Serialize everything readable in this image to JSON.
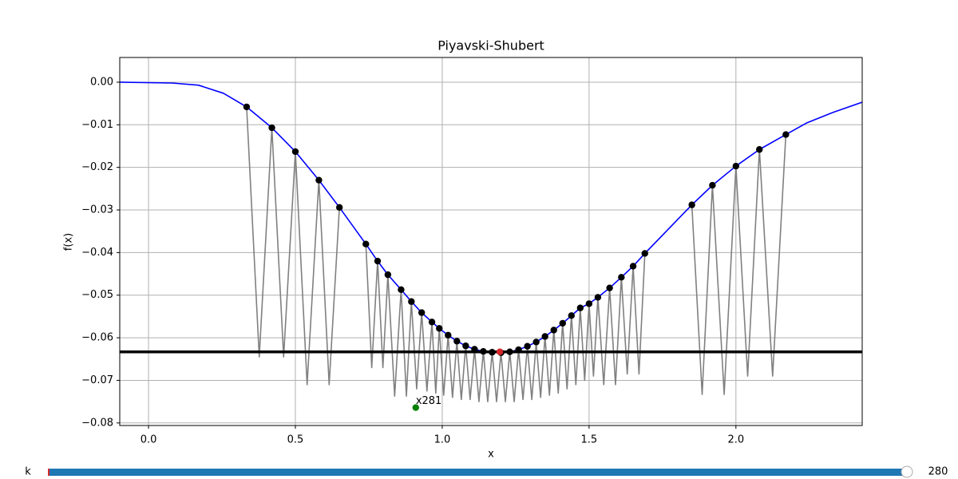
{
  "chart_data": {
    "type": "line",
    "title": "Piyavski-Shubert",
    "x_label": "x",
    "y_label": "f(x)",
    "xlim": [
      -0.098,
      2.43
    ],
    "ylim": [
      -0.0806,
      0.0058
    ],
    "xticks": [
      {
        "value": 0,
        "label": "0.0"
      },
      {
        "value": 0.5,
        "label": "0.5"
      },
      {
        "value": 1,
        "label": "1.0"
      },
      {
        "value": 1.5,
        "label": "1.5"
      },
      {
        "value": 2,
        "label": "2.0"
      }
    ],
    "yticks": [
      {
        "value": 0,
        "label": "0.00"
      },
      {
        "value": -0.01,
        "label": "−0.01"
      },
      {
        "value": -0.02,
        "label": "−0.02"
      },
      {
        "value": -0.03,
        "label": "−0.03"
      },
      {
        "value": -0.04,
        "label": "−0.04"
      },
      {
        "value": -0.05,
        "label": "−0.05"
      },
      {
        "value": -0.06,
        "label": "−0.06"
      },
      {
        "value": -0.07,
        "label": "−0.07"
      },
      {
        "value": -0.08,
        "label": "−0.08"
      }
    ],
    "grid": true,
    "lower_bound": {
      "color": "#808080",
      "x": [
        0.334,
        0.377,
        0.42,
        0.46,
        0.5,
        0.54,
        0.58,
        0.615,
        0.65,
        null,
        0.74,
        0.76,
        0.78,
        0.798,
        0.815,
        0.838,
        0.86,
        0.878,
        0.895,
        0.913,
        0.93,
        0.948,
        0.965,
        0.978,
        0.99,
        1.005,
        1.02,
        1.035,
        1.05,
        1.065,
        1.08,
        1.095,
        1.11,
        1.125,
        1.14,
        1.155,
        1.17,
        1.185,
        1.2,
        1.215,
        1.23,
        1.245,
        1.26,
        1.275,
        1.29,
        1.305,
        1.32,
        1.335,
        1.35,
        1.365,
        1.38,
        1.395,
        1.41,
        1.425,
        1.44,
        1.455,
        1.47,
        1.485,
        1.5,
        1.515,
        1.53,
        1.55,
        1.57,
        1.59,
        1.61,
        1.63,
        1.65,
        1.67,
        1.69,
        null,
        1.85,
        1.885,
        1.92,
        1.96,
        2.0,
        2.04,
        2.08,
        2.125,
        2.17
      ],
      "y": [
        -0.0058,
        -0.0645,
        -0.0107,
        -0.0645,
        -0.0163,
        -0.071,
        -0.023,
        -0.071,
        -0.0294,
        null,
        -0.038,
        -0.067,
        -0.042,
        -0.067,
        -0.0452,
        -0.0737,
        -0.0487,
        -0.0737,
        -0.0515,
        -0.072,
        -0.0541,
        -0.0725,
        -0.0563,
        -0.073,
        -0.0578,
        -0.0735,
        -0.0594,
        -0.074,
        -0.0608,
        -0.0745,
        -0.0619,
        -0.0745,
        -0.0627,
        -0.075,
        -0.0632,
        -0.075,
        -0.0634,
        -0.075,
        -0.0635,
        -0.075,
        -0.0633,
        -0.075,
        -0.0628,
        -0.0745,
        -0.062,
        -0.0745,
        -0.061,
        -0.074,
        -0.0597,
        -0.0735,
        -0.0582,
        -0.073,
        -0.0566,
        -0.072,
        -0.0548,
        -0.071,
        -0.053,
        -0.07,
        -0.052,
        -0.069,
        -0.0505,
        -0.071,
        -0.0483,
        -0.071,
        -0.0458,
        -0.0685,
        -0.0432,
        -0.0685,
        -0.0402,
        null,
        -0.0288,
        -0.0733,
        -0.0242,
        -0.0733,
        -0.0197,
        -0.069,
        -0.0158,
        -0.069,
        -0.0123
      ]
    },
    "curve": {
      "color": "#0000ff",
      "x": [
        -0.098,
        0.08,
        0.17,
        0.255,
        0.334,
        0.42,
        0.5,
        0.58,
        0.65,
        0.74,
        0.78,
        0.815,
        0.86,
        0.895,
        0.93,
        0.965,
        0.99,
        1.02,
        1.05,
        1.08,
        1.11,
        1.14,
        1.17,
        1.2,
        1.23,
        1.26,
        1.29,
        1.32,
        1.35,
        1.38,
        1.41,
        1.44,
        1.47,
        1.5,
        1.53,
        1.57,
        1.61,
        1.65,
        1.69,
        1.85,
        1.92,
        2.0,
        2.08,
        2.17,
        2.24,
        2.33,
        2.43
      ],
      "y": [
        0.0,
        -0.0002,
        -0.0007,
        -0.0026,
        -0.0058,
        -0.0107,
        -0.0163,
        -0.023,
        -0.0294,
        -0.038,
        -0.042,
        -0.0452,
        -0.0487,
        -0.0515,
        -0.0541,
        -0.0563,
        -0.0578,
        -0.0594,
        -0.0608,
        -0.0619,
        -0.0627,
        -0.0632,
        -0.0634,
        -0.0635,
        -0.0633,
        -0.0628,
        -0.062,
        -0.061,
        -0.0597,
        -0.0582,
        -0.0566,
        -0.0548,
        -0.053,
        -0.052,
        -0.0505,
        -0.0483,
        -0.0458,
        -0.0432,
        -0.0402,
        -0.0288,
        -0.0242,
        -0.0197,
        -0.0158,
        -0.0123,
        -0.0096,
        -0.0071,
        -0.0047
      ]
    },
    "samples": {
      "color": "#000000",
      "x": [
        0.334,
        0.42,
        0.5,
        0.58,
        0.65,
        0.74,
        0.78,
        0.815,
        0.86,
        0.895,
        0.93,
        0.965,
        0.99,
        1.02,
        1.05,
        1.08,
        1.11,
        1.14,
        1.17,
        1.2,
        1.23,
        1.26,
        1.29,
        1.32,
        1.35,
        1.38,
        1.41,
        1.44,
        1.47,
        1.5,
        1.53,
        1.57,
        1.61,
        1.65,
        1.69,
        1.85,
        1.92,
        2.0,
        2.08,
        2.17
      ],
      "y": [
        -0.0058,
        -0.0107,
        -0.0163,
        -0.023,
        -0.0294,
        -0.038,
        -0.042,
        -0.0452,
        -0.0487,
        -0.0515,
        -0.0541,
        -0.0563,
        -0.0578,
        -0.0594,
        -0.0608,
        -0.0619,
        -0.0627,
        -0.0632,
        -0.0634,
        -0.0635,
        -0.0633,
        -0.0628,
        -0.062,
        -0.061,
        -0.0597,
        -0.0582,
        -0.0566,
        -0.0548,
        -0.053,
        -0.052,
        -0.0505,
        -0.0483,
        -0.0458,
        -0.0432,
        -0.0402,
        -0.0288,
        -0.0242,
        -0.0197,
        -0.0158,
        -0.0123
      ]
    },
    "best_level": {
      "color": "#000000",
      "value": -0.0633
    },
    "best_point": {
      "color": "#d62728",
      "x": 1.196,
      "y": -0.0633
    },
    "new_point": {
      "color": "#008000",
      "x": 0.91,
      "y": -0.0764,
      "label": "x281"
    }
  },
  "slider": {
    "label": "k",
    "value": 280,
    "color": "#1f77b4"
  }
}
